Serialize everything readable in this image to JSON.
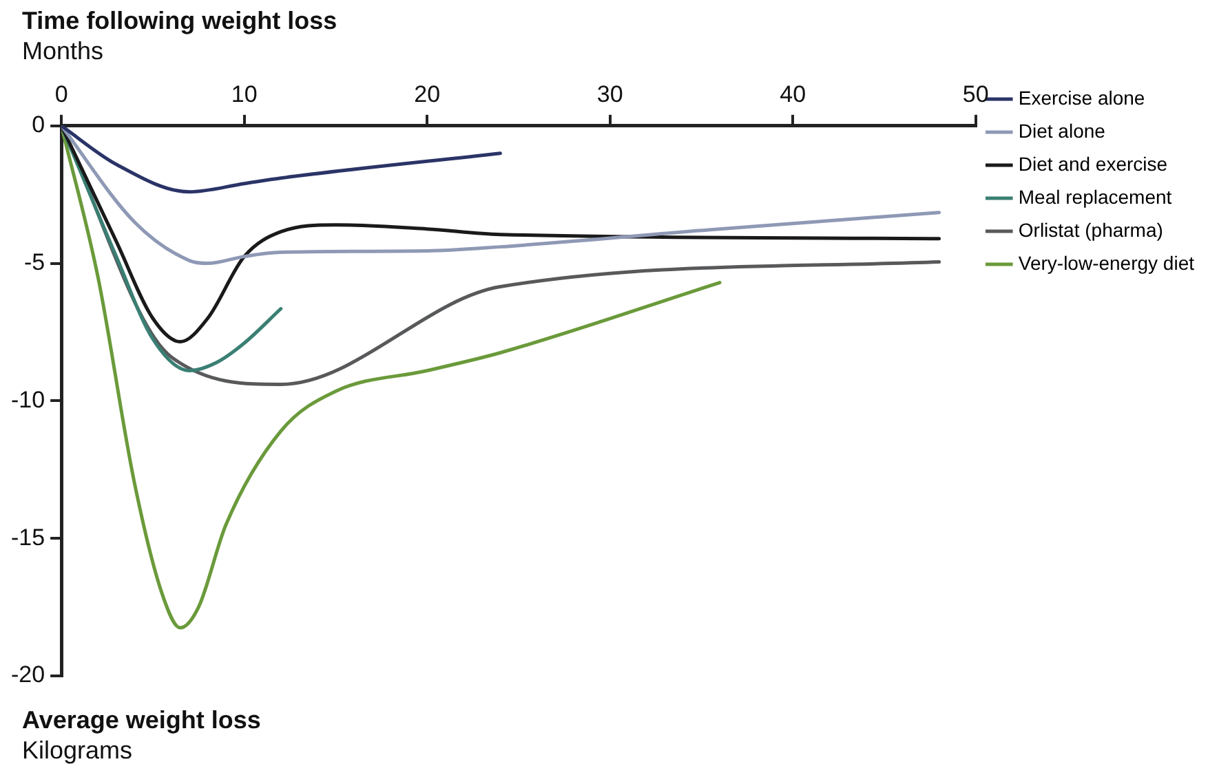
{
  "chart_data": {
    "type": "line",
    "xlabel": "Time following weight loss\nMonths",
    "ylabel": "Average weight loss\nKilograms",
    "xlim": [
      0,
      50
    ],
    "xticks": [
      0,
      10,
      20,
      30,
      40,
      50
    ],
    "ylim": [
      -20,
      0
    ],
    "yticks": [
      0,
      -5,
      -10,
      -15,
      -20
    ],
    "grid": false,
    "legend": "right",
    "marker": "none",
    "series": [
      {
        "name": "Exercise alone",
        "color": "#2b3467",
        "x": [
          0,
          3,
          7,
          10,
          12,
          24
        ],
        "values": [
          0,
          -1.4,
          -2.4,
          -2.1,
          -1.9,
          -1.0
        ]
      },
      {
        "name": "Diet alone",
        "color": "#8e99b5",
        "x": [
          0,
          4,
          7,
          8,
          10,
          12,
          20,
          24,
          36,
          48
        ],
        "values": [
          0,
          -3.5,
          -4.9,
          -5.0,
          -4.75,
          -4.6,
          -4.55,
          -4.4,
          -3.75,
          -3.15
        ]
      },
      {
        "name": "Diet and exercise",
        "color": "#1a1a1a",
        "x": [
          0,
          3,
          5,
          6.5,
          8,
          10,
          12,
          15,
          20,
          24,
          48
        ],
        "values": [
          0,
          -4.2,
          -7,
          -7.85,
          -7,
          -4.75,
          -3.85,
          -3.6,
          -3.75,
          -3.95,
          -4.1
        ]
      },
      {
        "name": "Meal replacement",
        "color": "#3a7f73",
        "x": [
          0,
          3,
          5,
          7,
          8.5,
          10,
          12
        ],
        "values": [
          0,
          -4.75,
          -7.75,
          -8.9,
          -8.6,
          -7.9,
          -6.65
        ]
      },
      {
        "name": "Orlistat (pharma)",
        "color": "#58595b",
        "x": [
          0,
          6,
          12,
          24,
          48
        ],
        "values": [
          0,
          -8.4,
          -9.4,
          -5.85,
          -4.95
        ]
      },
      {
        "name": "Very-low-energy diet",
        "color": "#6a9a3a",
        "x": [
          0,
          2,
          4,
          5.5,
          6.5,
          7.5,
          9,
          12,
          15,
          20,
          24,
          36
        ],
        "values": [
          0,
          -5.5,
          -13,
          -17,
          -18.25,
          -17.5,
          -14.5,
          -11.1,
          -9.65,
          -8.9,
          -8.25,
          -5.7
        ]
      }
    ]
  }
}
